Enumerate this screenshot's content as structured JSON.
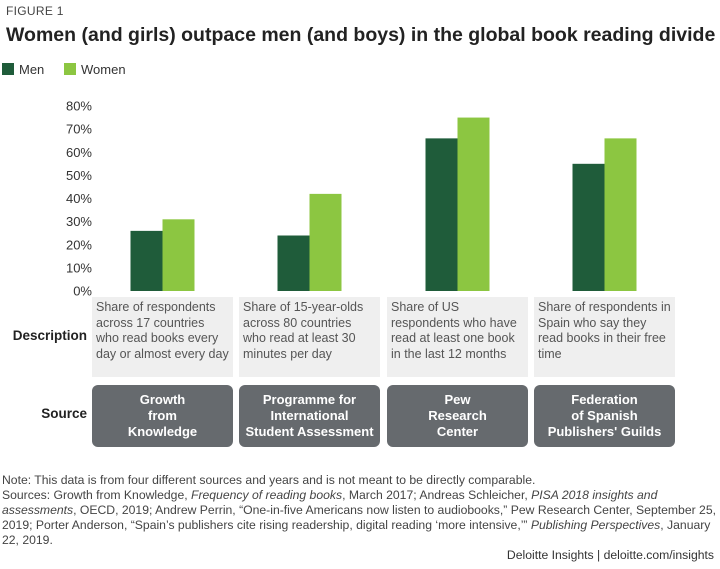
{
  "figure_label": "FIGURE 1",
  "title": "Women (and girls) outpace men (and boys) in the global book reading divide",
  "colors": {
    "men": "#1f5c3a",
    "women": "#8cc641",
    "source_box": "#666a6e",
    "desc_box": "#efefef"
  },
  "rows": {
    "description_label": "Description",
    "source_label": "Source"
  },
  "columns": [
    {
      "description": "Share of respondents across 17 countries who read books every day or almost every day",
      "source": "Growth\nfrom\nKnowledge"
    },
    {
      "description": "Share of 15-year-olds across 80 countries who read at least 30 minutes per day",
      "source": "Programme for\nInternational\nStudent Assessment"
    },
    {
      "description": "Share of US respondents who have read at least one book in the last 12 months",
      "source": "Pew\nResearch\nCenter"
    },
    {
      "description": "Share of respondents in Spain who say they read books in their free time",
      "source": "Federation\nof Spanish\nPublishers' Guilds"
    }
  ],
  "chart_data": {
    "type": "bar",
    "categories": [
      "Growth from Knowledge",
      "Programme for International Student Assessment",
      "Pew Research Center",
      "Federation of Spanish Publishers' Guilds"
    ],
    "series": [
      {
        "name": "Men",
        "values": [
          26,
          24,
          66,
          55
        ],
        "color": "#1f5c3a"
      },
      {
        "name": "Women",
        "values": [
          31,
          42,
          75,
          66
        ],
        "color": "#8cc641"
      }
    ],
    "ylim": [
      0,
      80
    ],
    "yticks": [
      0,
      10,
      20,
      30,
      40,
      50,
      60,
      70,
      80
    ],
    "ytick_labels": [
      "0%",
      "10%",
      "20%",
      "30%",
      "40%",
      "50%",
      "60%",
      "70%",
      "80%"
    ],
    "legend_position": "top-left",
    "grid": false
  },
  "notes": {
    "note": "Note: This data is from four different sources and years and is not meant to be directly comparable.",
    "sources_prefix": "Sources: Growth from Knowledge, ",
    "s1_title": "Frequency of reading books",
    "s1_rest": ", March 2017; Andreas Schleicher, ",
    "s2_title": "PISA 2018 insights and assessments",
    "s2_rest": ", OECD, 2019; Andrew Perrin, “One-in-five Americans now listen to audiobooks,” Pew Research Center, September 25, 2019; Porter Anderson, “Spain’s publishers cite rising readership, digital reading ‘more intensive,’” ",
    "s3_title": "Publishing Perspectives",
    "s3_rest": ", January 22, 2019."
  },
  "footer": "Deloitte Insights | deloitte.com/insights"
}
